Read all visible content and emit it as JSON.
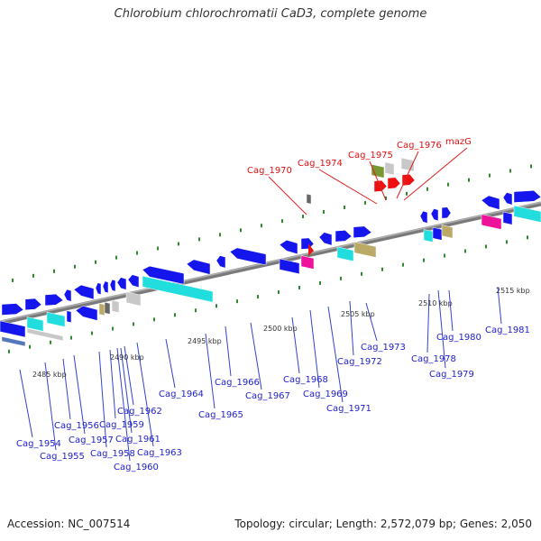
{
  "title": "Chlorobium chlorochromatii CaD3, complete genome",
  "footer": {
    "accession": "Accession: NC_007514",
    "summary": "Topology: circular; Length: 2,572,079 bp; Genes: 2,050"
  },
  "colors": {
    "gene_blue": "#1515ee",
    "gene_red": "#ee1111",
    "cyan": "#22dddd",
    "magenta": "#ee1199",
    "olive": "#bbaa66",
    "green": "#779933",
    "gray": "#c8c8c8",
    "dark_gray": "#666666",
    "tick_green": "#2d8a2d",
    "label_blue": "#2222cc",
    "label_red": "#dd1111"
  },
  "scale_labels": [
    "2485 kbp",
    "2490 kbp",
    "2495 kbp",
    "2500 kbp",
    "2505 kbp",
    "2510 kbp",
    "2515 kbp"
  ],
  "gene_labels_blue": [
    "Cag_1954",
    "Cag_1955",
    "Cag_1956",
    "Cag_1957",
    "Cag_1958",
    "Cag_1959",
    "Cag_1960",
    "Cag_1961",
    "Cag_1962",
    "Cag_1963",
    "Cag_1964",
    "Cag_1965",
    "Cag_1966",
    "Cag_1967",
    "Cag_1968",
    "Cag_1969",
    "Cag_1971",
    "Cag_1972",
    "Cag_1973",
    "Cag_1978",
    "Cag_1979",
    "Cag_1980",
    "Cag_1981"
  ],
  "gene_labels_red": [
    "Cag_1970",
    "Cag_1974",
    "Cag_1975",
    "Cag_1976",
    "mazG"
  ]
}
